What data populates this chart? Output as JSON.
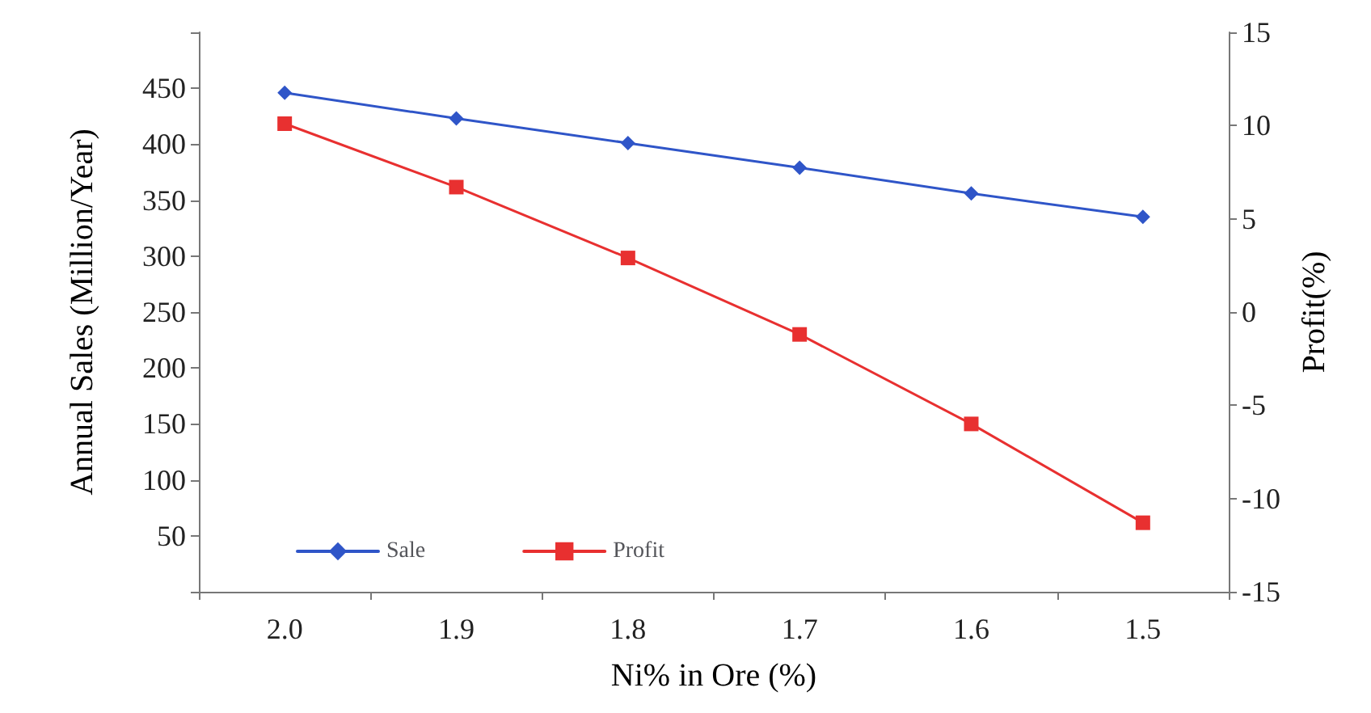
{
  "chart_data": {
    "type": "line",
    "xlabel": "Ni% in Ore (%)",
    "ylabel": "Annual Sales (Million/Year)",
    "y2label": "Profit(%)",
    "categories": [
      "2.0",
      "1.9",
      "1.8",
      "1.7",
      "1.6",
      "1.5"
    ],
    "series": [
      {
        "name": "Sale",
        "color": "#2f55c8",
        "marker": "diamond",
        "values": [
          446,
          423,
          401,
          379,
          356,
          335
        ]
      },
      {
        "name": "Profit",
        "color": "#e83030",
        "marker": "square",
        "axis": "y2",
        "values": [
          10.1,
          6.7,
          2.9,
          -1.2,
          -6.0,
          -11.3
        ]
      }
    ],
    "ylim": [
      0,
      500
    ],
    "yticks": [
      {
        "value": 0,
        "label": null
      },
      50,
      100,
      150,
      200,
      250,
      300,
      350,
      400,
      450,
      {
        "value": 500,
        "label": null
      }
    ],
    "y2lim": [
      -15,
      15
    ],
    "y2ticks": [
      -15,
      -10,
      -5,
      0,
      5,
      10,
      15
    ],
    "grid": false,
    "legend": "bottom left",
    "line_style": "solid"
  }
}
